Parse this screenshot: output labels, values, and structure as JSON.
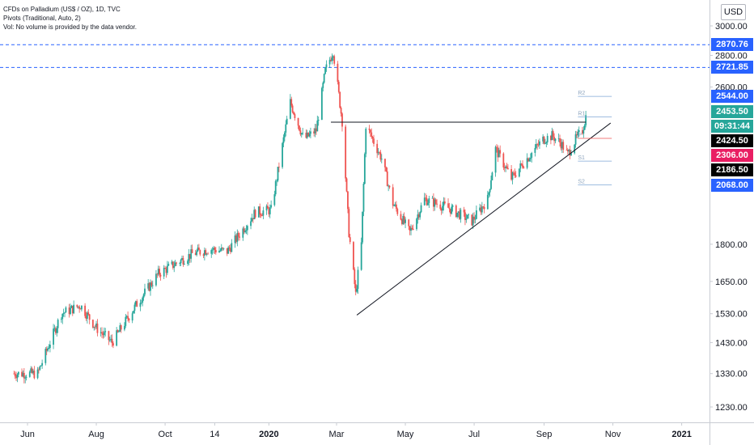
{
  "legend": {
    "title": "CFDs on Palladium (US$ / OZ), 1D, TVC",
    "pivots": "Pivots (Traditional, Auto, 2)",
    "volume_note": "Vol: No volume is provided by the data vendor."
  },
  "currency": "USD",
  "colors": {
    "up": "#26a69a",
    "down": "#ef5350",
    "hline": "#2962ff",
    "pivot_line": "#7fa7d6",
    "pivot_p": "#ef5350"
  },
  "price_tags": [
    {
      "label": "2870.76",
      "value": 2870.76,
      "bg": "#2962ff"
    },
    {
      "label": "2721.85",
      "value": 2721.85,
      "bg": "#2962ff"
    },
    {
      "label": "2544.00",
      "value": 2544.0,
      "bg": "#2962ff"
    },
    {
      "label": "2453.50",
      "value": 2453.5,
      "bg": "#26a69a"
    },
    {
      "label": "09:31:44",
      "value": 2440.0,
      "bg": "#26a69a"
    },
    {
      "label": "2424.50",
      "value": 2424.5,
      "bg": "#000000"
    },
    {
      "label": "2306.00",
      "value": 2306.0,
      "bg": "#e91e63"
    },
    {
      "label": "2186.50",
      "value": 2186.5,
      "bg": "#000000"
    },
    {
      "label": "2068.00",
      "value": 2068.0,
      "bg": "#2962ff"
    }
  ],
  "chart_data": {
    "type": "candlestick",
    "title": "CFDs on Palladium (US$ / OZ), 1D, TVC",
    "y_scale": "log",
    "y_ticks": [
      "3000.00",
      "2800.00",
      "2600.00",
      "1800.00",
      "1650.00",
      "1530.00",
      "1430.00",
      "1330.00",
      "1230.00"
    ],
    "x_ticks": [
      "Jun",
      "Aug",
      "Oct",
      "14",
      "2020",
      "Mar",
      "May",
      "Jul",
      "Sep",
      "Nov",
      "2021"
    ],
    "ylim": [
      1170,
      3080
    ],
    "grid": false,
    "series": [
      {
        "name": "CFDs on Palladium (US$ / OZ)",
        "anchors": [
          {
            "x": "2019-05-20",
            "close": 1330
          },
          {
            "x": "2019-06-10",
            "close": 1330
          },
          {
            "x": "2019-07-01",
            "close": 1530
          },
          {
            "x": "2019-07-18",
            "close": 1560
          },
          {
            "x": "2019-08-01",
            "close": 1480
          },
          {
            "x": "2019-08-15",
            "close": 1430
          },
          {
            "x": "2019-09-05",
            "close": 1560
          },
          {
            "x": "2019-09-25",
            "close": 1680
          },
          {
            "x": "2019-10-25",
            "close": 1760
          },
          {
            "x": "2019-11-10",
            "close": 1780
          },
          {
            "x": "2019-11-25",
            "close": 1770
          },
          {
            "x": "2019-12-20",
            "close": 1940
          },
          {
            "x": "2020-01-03",
            "close": 1950
          },
          {
            "x": "2020-01-14",
            "close": 2300
          },
          {
            "x": "2020-01-20",
            "close": 2510
          },
          {
            "x": "2020-02-01",
            "close": 2300
          },
          {
            "x": "2020-02-12",
            "close": 2350
          },
          {
            "x": "2020-02-20",
            "close": 2700
          },
          {
            "x": "2020-02-27",
            "close": 2830
          },
          {
            "x": "2020-03-06",
            "close": 2400
          },
          {
            "x": "2020-03-12",
            "close": 1850
          },
          {
            "x": "2020-03-18",
            "close": 1600
          },
          {
            "x": "2020-03-23",
            "close": 1800
          },
          {
            "x": "2020-03-27",
            "close": 2380
          },
          {
            "x": "2020-04-10",
            "close": 2200
          },
          {
            "x": "2020-04-20",
            "close": 1980
          },
          {
            "x": "2020-05-05",
            "close": 1850
          },
          {
            "x": "2020-05-18",
            "close": 2000
          },
          {
            "x": "2020-06-08",
            "close": 1960
          },
          {
            "x": "2020-06-29",
            "close": 1900
          },
          {
            "x": "2020-07-13",
            "close": 2000
          },
          {
            "x": "2020-07-20",
            "close": 2250
          },
          {
            "x": "2020-08-03",
            "close": 2100
          },
          {
            "x": "2020-08-17",
            "close": 2200
          },
          {
            "x": "2020-08-31",
            "close": 2300
          },
          {
            "x": "2020-09-08",
            "close": 2320
          },
          {
            "x": "2020-09-16",
            "close": 2280
          },
          {
            "x": "2020-09-22",
            "close": 2220
          },
          {
            "x": "2020-09-29",
            "close": 2300
          },
          {
            "x": "2020-10-05",
            "close": 2350
          },
          {
            "x": "2020-10-09",
            "close": 2453.5
          }
        ]
      }
    ],
    "horizontal_lines": [
      2870.76,
      2721.85
    ],
    "pivots": [
      {
        "label": "R2",
        "value": 2544.0
      },
      {
        "label": "R1",
        "value": 2424.5
      },
      {
        "label": "P",
        "value": 2306.0
      },
      {
        "label": "S1",
        "value": 2186.5
      },
      {
        "label": "S2",
        "value": 2068.0
      }
    ],
    "trendlines": [
      {
        "from": {
          "x": "2020-02-25",
          "y": 2395
        },
        "to": {
          "x": "2020-10-08",
          "y": 2395
        }
      },
      {
        "from": {
          "x": "2020-03-19",
          "y": 1525
        },
        "to": {
          "x": "2020-10-30",
          "y": 2390
        }
      }
    ]
  }
}
